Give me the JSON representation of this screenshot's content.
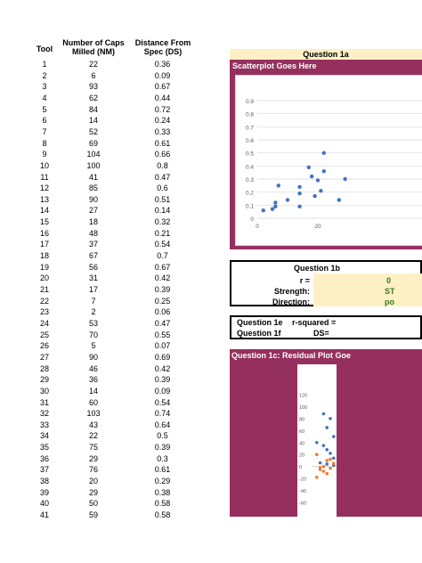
{
  "table": {
    "headers": {
      "tool": "Tool",
      "caps_line1": "Number of Caps",
      "caps_line2": "Milled (NM)",
      "ds_line1": "Distance From",
      "ds_line2": "Spec (DS)"
    },
    "rows": [
      [
        "1",
        "22",
        "0.36"
      ],
      [
        "2",
        "6",
        "0.09"
      ],
      [
        "3",
        "93",
        "0.67"
      ],
      [
        "4",
        "62",
        "0.44"
      ],
      [
        "5",
        "84",
        "0.72"
      ],
      [
        "6",
        "14",
        "0.24"
      ],
      [
        "7",
        "52",
        "0.33"
      ],
      [
        "8",
        "69",
        "0.61"
      ],
      [
        "9",
        "104",
        "0.66"
      ],
      [
        "10",
        "100",
        "0.8"
      ],
      [
        "11",
        "41",
        "0.47"
      ],
      [
        "12",
        "85",
        "0.6"
      ],
      [
        "13",
        "90",
        "0.51"
      ],
      [
        "14",
        "27",
        "0.14"
      ],
      [
        "15",
        "18",
        "0.32"
      ],
      [
        "16",
        "48",
        "0.21"
      ],
      [
        "17",
        "37",
        "0.54"
      ],
      [
        "18",
        "67",
        "0.7"
      ],
      [
        "19",
        "56",
        "0.67"
      ],
      [
        "20",
        "31",
        "0.42"
      ],
      [
        "21",
        "17",
        "0.39"
      ],
      [
        "22",
        "7",
        "0.25"
      ],
      [
        "23",
        "2",
        "0.06"
      ],
      [
        "24",
        "53",
        "0.47"
      ],
      [
        "25",
        "70",
        "0.55"
      ],
      [
        "26",
        "5",
        "0.07"
      ],
      [
        "27",
        "90",
        "0.69"
      ],
      [
        "28",
        "46",
        "0.42"
      ],
      [
        "29",
        "36",
        "0.39"
      ],
      [
        "30",
        "14",
        "0.09"
      ],
      [
        "31",
        "60",
        "0.54"
      ],
      [
        "32",
        "103",
        "0.74"
      ],
      [
        "33",
        "43",
        "0.64"
      ],
      [
        "34",
        "22",
        "0.5"
      ],
      [
        "35",
        "75",
        "0.39"
      ],
      [
        "36",
        "29",
        "0.3"
      ],
      [
        "37",
        "76",
        "0.61"
      ],
      [
        "38",
        "20",
        "0.29"
      ],
      [
        "39",
        "29",
        "0.38"
      ],
      [
        "40",
        "50",
        "0.58"
      ],
      [
        "41",
        "59",
        "0.58"
      ]
    ]
  },
  "q1a": {
    "header": "Question 1a",
    "title": "Scatterplot Goes Here"
  },
  "scatter": {
    "yticks": [
      "0.9",
      "0.8",
      "0.7",
      "0.6",
      "0.5",
      "0.4",
      "0.3",
      "0.2",
      "0.1",
      "0"
    ],
    "xticks": [
      "0",
      "20"
    ],
    "points": [
      [
        2,
        0.06
      ],
      [
        5,
        0.07
      ],
      [
        6,
        0.09
      ],
      [
        7,
        0.25
      ],
      [
        14,
        0.09
      ],
      [
        14,
        0.24
      ],
      [
        17,
        0.39
      ],
      [
        18,
        0.32
      ],
      [
        20,
        0.29
      ],
      [
        22,
        0.36
      ],
      [
        22,
        0.5
      ],
      [
        27,
        0.14
      ],
      [
        29,
        0.3
      ],
      [
        6,
        0.12
      ],
      [
        10,
        0.14
      ],
      [
        14,
        0.19
      ],
      [
        19,
        0.17
      ],
      [
        21,
        0.21
      ]
    ],
    "color": "#4472c4"
  },
  "q1b": {
    "header": "Question 1b",
    "r_label": "r =",
    "r_value": "0",
    "strength_label": "Strength:",
    "strength_value": "ST",
    "direction_label": "Direction:",
    "direction_value": "po"
  },
  "q1e": {
    "label": "Question 1e",
    "rsq_label": "r-squared ="
  },
  "q1f": {
    "label": "Question 1f",
    "ds_label": "DS="
  },
  "q1c": {
    "title": "Question 1c: Residual Plot Goe"
  },
  "residual": {
    "yticks": [
      "120",
      "100",
      "80",
      "60",
      "40",
      "20",
      "0",
      "-20",
      "-40",
      "-60"
    ],
    "blue": [
      [
        3,
        88
      ],
      [
        5,
        80
      ],
      [
        4,
        65
      ],
      [
        6,
        50
      ],
      [
        1,
        40
      ],
      [
        3,
        35
      ],
      [
        4,
        28
      ],
      [
        5,
        22
      ],
      [
        6,
        14
      ],
      [
        2,
        6
      ],
      [
        4,
        4
      ],
      [
        6,
        2
      ]
    ],
    "orange": [
      [
        1,
        -18
      ],
      [
        2,
        -5
      ],
      [
        3,
        0
      ],
      [
        4,
        10
      ],
      [
        5,
        12
      ],
      [
        6,
        5
      ],
      [
        2,
        -2
      ],
      [
        3,
        -8
      ],
      [
        5,
        -3
      ],
      [
        4,
        -12
      ],
      [
        1,
        20
      ]
    ],
    "blue_color": "#4472c4",
    "orange_color": "#ed7d31"
  },
  "colors": {
    "magenta": "#95305e",
    "header_fill": "#fdf0c5"
  }
}
